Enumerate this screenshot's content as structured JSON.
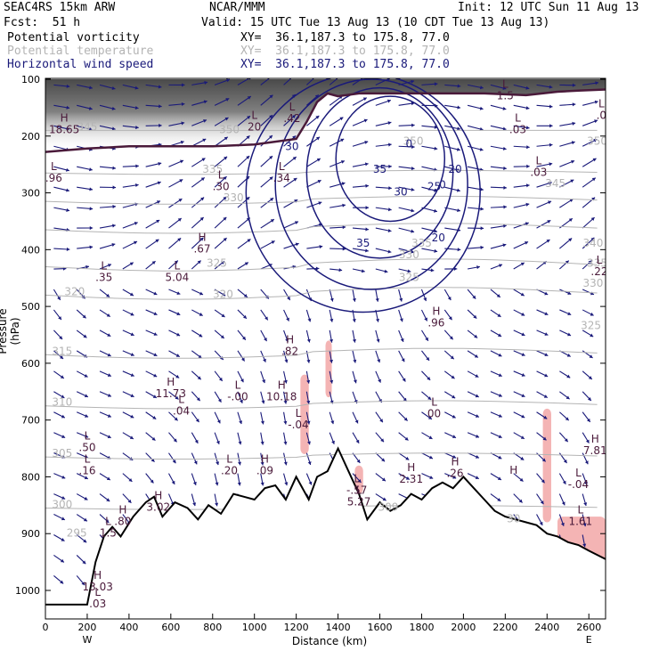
{
  "header": {
    "model": "SEAC4RS 15km ARW",
    "org": "NCAR/MMM",
    "init": "Init: 12 UTC Sun 11 Aug 13",
    "fcst": "Fcst:  51 h",
    "valid": "Valid: 15 UTC Tue 13 Aug 13 (10 CDT Tue 13 Aug 13)",
    "fields": [
      {
        "name": "Potential vorticity",
        "xy": "XY=  36.1,187.3 to 175.8, 77.0",
        "color": "#000000"
      },
      {
        "name": "Potential temperature",
        "xy": "XY=  36.1,187.3 to 175.8, 77.0",
        "color": "#b4b4b4"
      },
      {
        "name": "Horizontal wind speed",
        "xy": "XY=  36.1,187.3 to 175.8, 77.0",
        "color": "#1a1a7a"
      }
    ]
  },
  "chart_data": {
    "type": "cross-section",
    "xlabel": "Distance (km)",
    "ylabel": "Pressure (hPa)",
    "xlim": [
      0,
      2680
    ],
    "ylim": [
      1050,
      100
    ],
    "x_ticks": [
      0,
      200,
      400,
      600,
      800,
      1000,
      1200,
      1400,
      1600,
      1800,
      2000,
      2200,
      2400,
      2600
    ],
    "y_ticks": [
      100,
      200,
      300,
      400,
      500,
      600,
      700,
      800,
      900,
      1000
    ],
    "x_endpoints": {
      "left": "W",
      "right": "E"
    },
    "colors": {
      "wind": "#1a1a7a",
      "theta": "#b4b4b4",
      "pv": "#4a1a3a",
      "pink": "#f4b4b4",
      "terrain": "#000000"
    },
    "terrain": [
      [
        0,
        1025
      ],
      [
        120,
        1025
      ],
      [
        200,
        1025
      ],
      [
        240,
        950
      ],
      [
        280,
        905
      ],
      [
        320,
        888
      ],
      [
        360,
        905
      ],
      [
        420,
        870
      ],
      [
        480,
        845
      ],
      [
        520,
        835
      ],
      [
        560,
        870
      ],
      [
        620,
        845
      ],
      [
        680,
        855
      ],
      [
        730,
        875
      ],
      [
        780,
        850
      ],
      [
        840,
        865
      ],
      [
        900,
        830
      ],
      [
        950,
        835
      ],
      [
        1000,
        840
      ],
      [
        1050,
        820
      ],
      [
        1100,
        815
      ],
      [
        1150,
        840
      ],
      [
        1200,
        800
      ],
      [
        1260,
        840
      ],
      [
        1300,
        800
      ],
      [
        1350,
        790
      ],
      [
        1400,
        750
      ],
      [
        1450,
        790
      ],
      [
        1500,
        830
      ],
      [
        1540,
        875
      ],
      [
        1600,
        845
      ],
      [
        1650,
        860
      ],
      [
        1700,
        850
      ],
      [
        1750,
        830
      ],
      [
        1800,
        840
      ],
      [
        1850,
        820
      ],
      [
        1900,
        810
      ],
      [
        1950,
        820
      ],
      [
        2000,
        800
      ],
      [
        2050,
        820
      ],
      [
        2100,
        840
      ],
      [
        2150,
        860
      ],
      [
        2200,
        870
      ],
      [
        2250,
        875
      ],
      [
        2300,
        880
      ],
      [
        2350,
        885
      ],
      [
        2400,
        900
      ],
      [
        2450,
        905
      ],
      [
        2500,
        915
      ],
      [
        2550,
        920
      ],
      [
        2600,
        930
      ],
      [
        2680,
        945
      ]
    ],
    "tropopause": [
      [
        0,
        228
      ],
      [
        200,
        222
      ],
      [
        400,
        218
      ],
      [
        600,
        218
      ],
      [
        800,
        218
      ],
      [
        1000,
        215
      ],
      [
        1200,
        205
      ],
      [
        1250,
        175
      ],
      [
        1300,
        140
      ],
      [
        1350,
        125
      ],
      [
        1400,
        130
      ],
      [
        1500,
        125
      ],
      [
        1700,
        125
      ],
      [
        1900,
        125
      ],
      [
        2100,
        125
      ],
      [
        2300,
        128
      ],
      [
        2450,
        122
      ],
      [
        2550,
        120
      ],
      [
        2680,
        118
      ]
    ],
    "theta_labels": [
      {
        "x": 200,
        "p": 190,
        "text": "345"
      },
      {
        "x": 880,
        "p": 195,
        "text": "350"
      },
      {
        "x": 800,
        "p": 265,
        "text": "335"
      },
      {
        "x": 900,
        "p": 315,
        "text": "330"
      },
      {
        "x": 820,
        "p": 430,
        "text": "325"
      },
      {
        "x": 140,
        "p": 480,
        "text": "320"
      },
      {
        "x": 850,
        "p": 485,
        "text": "320"
      },
      {
        "x": 80,
        "p": 585,
        "text": "315"
      },
      {
        "x": 80,
        "p": 675,
        "text": "310"
      },
      {
        "x": 80,
        "p": 765,
        "text": "305"
      },
      {
        "x": 80,
        "p": 855,
        "text": "300"
      },
      {
        "x": 150,
        "p": 905,
        "text": "295"
      },
      {
        "x": 1740,
        "p": 455,
        "text": "325"
      },
      {
        "x": 1740,
        "p": 415,
        "text": "330"
      },
      {
        "x": 1800,
        "p": 395,
        "text": "335"
      },
      {
        "x": 1760,
        "p": 215,
        "text": "350"
      },
      {
        "x": 2440,
        "p": 290,
        "text": "345"
      },
      {
        "x": 2620,
        "p": 395,
        "text": "340"
      },
      {
        "x": 2640,
        "p": 430,
        "text": "335"
      },
      {
        "x": 2620,
        "p": 465,
        "text": "330"
      },
      {
        "x": 2610,
        "p": 540,
        "text": "325"
      },
      {
        "x": 2640,
        "p": 215,
        "text": "350"
      },
      {
        "x": 1640,
        "p": 860,
        "text": "309"
      },
      {
        "x": 2240,
        "p": 880,
        "text": "30"
      }
    ],
    "wind_labels": [
      {
        "x": 1600,
        "p": 265,
        "text": "35"
      },
      {
        "x": 1700,
        "p": 305,
        "text": "30"
      },
      {
        "x": 1860,
        "p": 295,
        "text": "25"
      },
      {
        "x": 1960,
        "p": 265,
        "text": "20"
      },
      {
        "x": 1880,
        "p": 385,
        "text": "20"
      },
      {
        "x": 1900,
        "p": 292,
        "text": "0"
      },
      {
        "x": 1740,
        "p": 220,
        "text": "0"
      },
      {
        "x": 1520,
        "p": 395,
        "text": "35"
      },
      {
        "x": 1180,
        "p": 225,
        "text": "30"
      }
    ],
    "extrema": [
      {
        "x": 90,
        "p": 195,
        "kind": "H",
        "value": "18.65"
      },
      {
        "x": 40,
        "p": 280,
        "kind": "L",
        "value": ".96"
      },
      {
        "x": 840,
        "p": 295,
        "kind": "L",
        "value": ".30"
      },
      {
        "x": 1130,
        "p": 280,
        "kind": "L",
        "value": ".34"
      },
      {
        "x": 1180,
        "p": 175,
        "kind": "L",
        "value": ".42"
      },
      {
        "x": 1000,
        "p": 190,
        "kind": "L",
        "value": "20"
      },
      {
        "x": 750,
        "p": 405,
        "kind": "H",
        "value": ".67"
      },
      {
        "x": 280,
        "p": 455,
        "kind": "L",
        "value": ".35"
      },
      {
        "x": 630,
        "p": 455,
        "kind": "L",
        "value": "5.04"
      },
      {
        "x": 1170,
        "p": 585,
        "kind": "H",
        "value": ".82"
      },
      {
        "x": 600,
        "p": 660,
        "kind": "H",
        "value": "11.73"
      },
      {
        "x": 650,
        "p": 690,
        "kind": "L",
        "value": ".04"
      },
      {
        "x": 920,
        "p": 665,
        "kind": "L",
        "value": "-.00"
      },
      {
        "x": 1130,
        "p": 665,
        "kind": "H",
        "value": "10.18"
      },
      {
        "x": 1210,
        "p": 715,
        "kind": "L",
        "value": "-.04"
      },
      {
        "x": 1860,
        "p": 695,
        "kind": "L",
        "value": "00"
      },
      {
        "x": 1870,
        "p": 535,
        "kind": "H",
        "value": ".96"
      },
      {
        "x": 200,
        "p": 755,
        "kind": "L",
        "value": ".50"
      },
      {
        "x": 200,
        "p": 795,
        "kind": "L",
        "value": ".16"
      },
      {
        "x": 880,
        "p": 795,
        "kind": "L",
        "value": ".20"
      },
      {
        "x": 1050,
        "p": 795,
        "kind": "H",
        "value": ".09"
      },
      {
        "x": 540,
        "p": 860,
        "kind": "H",
        "value": "3.02"
      },
      {
        "x": 1490,
        "p": 830,
        "kind": "L",
        "value": "-.57"
      },
      {
        "x": 1500,
        "p": 850,
        "kind": "L",
        "value": "5.27"
      },
      {
        "x": 1750,
        "p": 810,
        "kind": "H",
        "value": "2.31"
      },
      {
        "x": 1960,
        "p": 800,
        "kind": "H",
        "value": ".26"
      },
      {
        "x": 370,
        "p": 885,
        "kind": "H",
        "value": ".80"
      },
      {
        "x": 300,
        "p": 905,
        "kind": "L",
        "value": "1.5"
      },
      {
        "x": 250,
        "p": 1000,
        "kind": "H",
        "value": "13.03"
      },
      {
        "x": 250,
        "p": 1030,
        "kind": "L",
        "value": ".03"
      },
      {
        "x": 2240,
        "p": 815,
        "kind": "H",
        "value": ""
      },
      {
        "x": 2550,
        "p": 820,
        "kind": "L",
        "value": "-.04"
      },
      {
        "x": 2630,
        "p": 760,
        "kind": "H",
        "value": "7.81"
      },
      {
        "x": 2560,
        "p": 885,
        "kind": "L",
        "value": "1.61"
      },
      {
        "x": 2260,
        "p": 195,
        "kind": "L",
        "value": ".03"
      },
      {
        "x": 2360,
        "p": 270,
        "kind": "L",
        "value": ".03"
      },
      {
        "x": 2650,
        "p": 445,
        "kind": "L",
        "value": ".22"
      },
      {
        "x": 2660,
        "p": 170,
        "kind": "L",
        "value": ".0"
      },
      {
        "x": 2200,
        "p": 135,
        "kind": "L",
        "value": "1.5"
      }
    ]
  }
}
